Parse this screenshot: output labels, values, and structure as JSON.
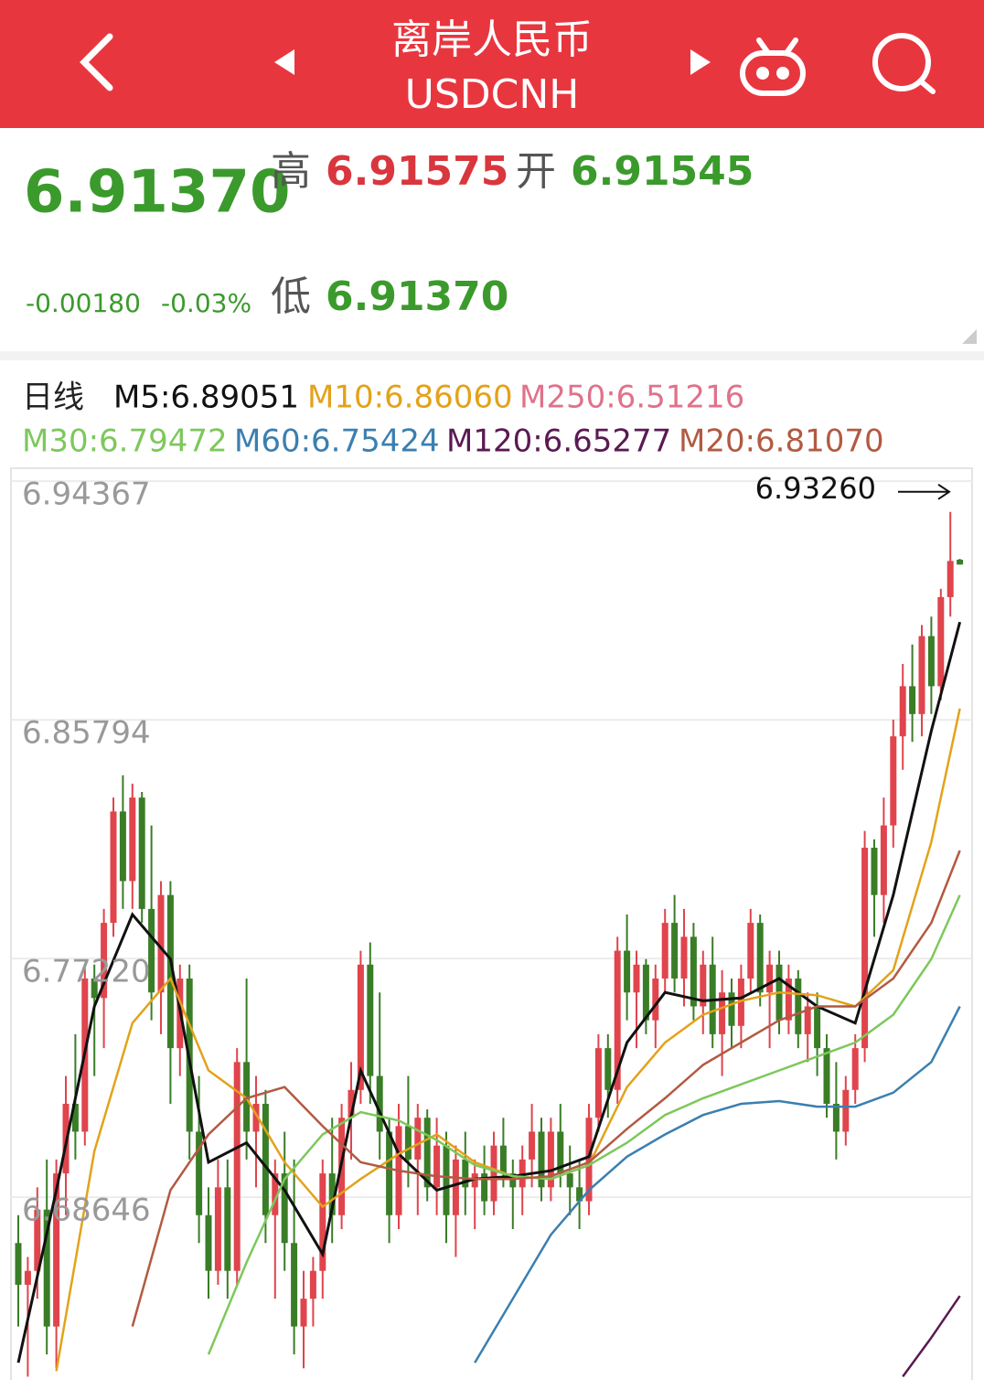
{
  "header": {
    "title": "离岸人民币",
    "symbol": "USDCNH"
  },
  "quote": {
    "price": "6.91370",
    "high_label": "高",
    "high": "6.91575",
    "open_label": "开",
    "open": "6.91545",
    "change": "-0.00180",
    "change_pct": "-0.03%",
    "low_label": "低",
    "low": "6.91370"
  },
  "chart_data": {
    "type": "candlestick",
    "period": "日线",
    "up_color": "#e0444c",
    "down_color": "#3a7d27",
    "ylim": [
      6.6208,
      6.9483
    ],
    "yticks": [
      6.94367,
      6.85794,
      {
        "value": 6.7722,
        "label": "6.77220"
      },
      6.68646
    ],
    "grid": true,
    "max_label": {
      "value": 6.9326,
      "label": "6.93260"
    },
    "ohlc": [
      [
        6.67,
        6.68,
        6.64,
        6.655
      ],
      [
        6.655,
        6.665,
        6.622,
        6.66
      ],
      [
        6.66,
        6.69,
        6.65,
        6.682
      ],
      [
        6.682,
        6.7,
        6.63,
        6.64
      ],
      [
        6.64,
        6.7,
        6.625,
        6.695
      ],
      [
        6.695,
        6.73,
        6.68,
        6.72
      ],
      [
        6.72,
        6.745,
        6.7,
        6.71
      ],
      [
        6.71,
        6.77,
        6.705,
        6.765
      ],
      [
        6.765,
        6.77,
        6.73,
        6.758
      ],
      [
        6.758,
        6.79,
        6.74,
        6.785
      ],
      [
        6.785,
        6.83,
        6.78,
        6.825
      ],
      [
        6.825,
        6.838,
        6.79,
        6.8
      ],
      [
        6.8,
        6.835,
        6.79,
        6.83
      ],
      [
        6.83,
        6.832,
        6.785,
        6.79
      ],
      [
        6.79,
        6.82,
        6.75,
        6.76
      ],
      [
        6.76,
        6.8,
        6.745,
        6.795
      ],
      [
        6.795,
        6.8,
        6.72,
        6.74
      ],
      [
        6.74,
        6.77,
        6.73,
        6.765
      ],
      [
        6.765,
        6.77,
        6.7,
        6.71
      ],
      [
        6.71,
        6.73,
        6.67,
        6.68
      ],
      [
        6.68,
        6.69,
        6.65,
        6.66
      ],
      [
        6.66,
        6.7,
        6.655,
        6.69
      ],
      [
        6.69,
        6.7,
        6.65,
        6.66
      ],
      [
        6.66,
        6.74,
        6.655,
        6.735
      ],
      [
        6.735,
        6.765,
        6.7,
        6.71
      ],
      [
        6.71,
        6.73,
        6.69,
        6.72
      ],
      [
        6.72,
        6.725,
        6.67,
        6.68
      ],
      [
        6.68,
        6.7,
        6.65,
        6.695
      ],
      [
        6.695,
        6.71,
        6.66,
        6.67
      ],
      [
        6.67,
        6.7,
        6.63,
        6.64
      ],
      [
        6.64,
        6.66,
        6.625,
        6.65
      ],
      [
        6.65,
        6.665,
        6.64,
        6.66
      ],
      [
        6.66,
        6.7,
        6.65,
        6.695
      ],
      [
        6.695,
        6.715,
        6.67,
        6.68
      ],
      [
        6.68,
        6.72,
        6.675,
        6.715
      ],
      [
        6.715,
        6.735,
        6.7,
        6.725
      ],
      [
        6.725,
        6.775,
        6.72,
        6.77
      ],
      [
        6.77,
        6.778,
        6.72,
        6.73
      ],
      [
        6.73,
        6.76,
        6.7,
        6.71
      ],
      [
        6.71,
        6.715,
        6.67,
        6.68
      ],
      [
        6.68,
        6.72,
        6.675,
        6.712
      ],
      [
        6.712,
        6.73,
        6.69,
        6.7
      ],
      [
        6.7,
        6.72,
        6.68,
        6.715
      ],
      [
        6.715,
        6.718,
        6.685,
        6.69
      ],
      [
        6.69,
        6.715,
        6.68,
        6.705
      ],
      [
        6.705,
        6.71,
        6.67,
        6.68
      ],
      [
        6.68,
        6.705,
        6.665,
        6.7
      ],
      [
        6.7,
        6.71,
        6.68,
        6.69
      ],
      [
        6.69,
        6.7,
        6.675,
        6.695
      ],
      [
        6.695,
        6.705,
        6.68,
        6.685
      ],
      [
        6.685,
        6.71,
        6.68,
        6.705
      ],
      [
        6.705,
        6.715,
        6.69,
        6.695
      ],
      [
        6.695,
        6.7,
        6.675,
        6.69
      ],
      [
        6.69,
        6.705,
        6.68,
        6.7
      ],
      [
        6.7,
        6.72,
        6.69,
        6.71
      ],
      [
        6.71,
        6.715,
        6.685,
        6.69
      ],
      [
        6.69,
        6.715,
        6.685,
        6.71
      ],
      [
        6.71,
        6.72,
        6.69,
        6.695
      ],
      [
        6.695,
        6.705,
        6.68,
        6.69
      ],
      [
        6.69,
        6.7,
        6.675,
        6.685
      ],
      [
        6.685,
        6.72,
        6.68,
        6.715
      ],
      [
        6.715,
        6.745,
        6.71,
        6.74
      ],
      [
        6.74,
        6.745,
        6.715,
        6.725
      ],
      [
        6.725,
        6.78,
        6.72,
        6.775
      ],
      [
        6.775,
        6.788,
        6.75,
        6.76
      ],
      [
        6.76,
        6.775,
        6.74,
        6.77
      ],
      [
        6.77,
        6.772,
        6.745,
        6.75
      ],
      [
        6.75,
        6.77,
        6.74,
        6.765
      ],
      [
        6.765,
        6.79,
        6.76,
        6.785
      ],
      [
        6.785,
        6.795,
        6.76,
        6.765
      ],
      [
        6.765,
        6.79,
        6.755,
        6.78
      ],
      [
        6.78,
        6.785,
        6.75,
        6.755
      ],
      [
        6.755,
        6.775,
        6.745,
        6.77
      ],
      [
        6.77,
        6.78,
        6.74,
        6.745
      ],
      [
        6.745,
        6.768,
        6.73,
        6.76
      ],
      [
        6.76,
        6.765,
        6.74,
        6.748
      ],
      [
        6.748,
        6.77,
        6.74,
        6.765
      ],
      [
        6.765,
        6.79,
        6.76,
        6.785
      ],
      [
        6.785,
        6.788,
        6.755,
        6.76
      ],
      [
        6.76,
        6.775,
        6.74,
        6.77
      ],
      [
        6.77,
        6.775,
        6.745,
        6.75
      ],
      [
        6.75,
        6.77,
        6.745,
        6.765
      ],
      [
        6.765,
        6.768,
        6.74,
        6.745
      ],
      [
        6.745,
        6.76,
        6.735,
        6.755
      ],
      [
        6.755,
        6.76,
        6.73,
        6.74
      ],
      [
        6.74,
        6.745,
        6.715,
        6.72
      ],
      [
        6.72,
        6.735,
        6.7,
        6.71
      ],
      [
        6.71,
        6.73,
        6.705,
        6.725
      ],
      [
        6.725,
        6.745,
        6.72,
        6.74
      ],
      [
        6.74,
        6.818,
        6.735,
        6.812
      ],
      [
        6.812,
        6.815,
        6.78,
        6.795
      ],
      [
        6.795,
        6.83,
        6.785,
        6.82
      ],
      [
        6.82,
        6.858,
        6.812,
        6.852
      ],
      [
        6.852,
        6.878,
        6.84,
        6.87
      ],
      [
        6.87,
        6.885,
        6.85,
        6.86
      ],
      [
        6.86,
        6.892,
        6.852,
        6.888
      ],
      [
        6.888,
        6.895,
        6.86,
        6.87
      ],
      [
        6.87,
        6.905,
        6.865,
        6.902
      ],
      [
        6.902,
        6.9326,
        6.895,
        6.915
      ],
      [
        6.91545,
        6.91575,
        6.9137,
        6.9137
      ]
    ],
    "series": [
      {
        "name": "M5:6.89051",
        "color": "#111111",
        "x": [
          0,
          4,
          8,
          12,
          16,
          20,
          24,
          28,
          32,
          36,
          40,
          44,
          48,
          52,
          56,
          60,
          64,
          68,
          72,
          76,
          80,
          84,
          88,
          92,
          96,
          99
        ],
        "values": [
          6.627,
          6.689,
          6.755,
          6.788,
          6.772,
          6.699,
          6.706,
          6.689,
          6.666,
          6.732,
          6.702,
          6.689,
          6.693,
          6.694,
          6.696,
          6.701,
          6.742,
          6.76,
          6.757,
          6.758,
          6.765,
          6.755,
          6.749,
          6.795,
          6.854,
          6.893
        ]
      },
      {
        "name": "M10:6.86060",
        "color": "#e3a21a",
        "x": [
          4,
          8,
          12,
          16,
          20,
          24,
          28,
          32,
          36,
          40,
          44,
          48,
          52,
          56,
          60,
          64,
          68,
          72,
          76,
          80,
          84,
          88,
          92,
          96,
          99
        ],
        "values": [
          6.624,
          6.703,
          6.749,
          6.765,
          6.732,
          6.722,
          6.699,
          6.683,
          6.693,
          6.702,
          6.709,
          6.699,
          6.694,
          6.693,
          6.698,
          6.726,
          6.742,
          6.752,
          6.757,
          6.76,
          6.759,
          6.755,
          6.768,
          6.814,
          6.862
        ]
      },
      {
        "name": "M250:6.51216",
        "color": "#e0728a",
        "x": [],
        "values": []
      },
      {
        "name": "M30:6.79472",
        "color": "#7dc85c",
        "x": [
          20,
          24,
          28,
          32,
          36,
          40,
          44,
          48,
          52,
          56,
          60,
          64,
          68,
          72,
          76,
          80,
          84,
          88,
          92,
          96,
          99
        ],
        "values": [
          6.63,
          6.663,
          6.693,
          6.709,
          6.717,
          6.714,
          6.707,
          6.698,
          6.694,
          6.693,
          6.698,
          6.706,
          6.716,
          6.722,
          6.727,
          6.732,
          6.737,
          6.742,
          6.752,
          6.772,
          6.795
        ]
      },
      {
        "name": "M60:6.75424",
        "color": "#3b7fb0",
        "x": [
          48,
          52,
          56,
          60,
          64,
          68,
          72,
          76,
          80,
          84,
          88,
          92,
          96,
          99
        ],
        "values": [
          6.627,
          6.65,
          6.673,
          6.689,
          6.701,
          6.709,
          6.716,
          6.72,
          6.721,
          6.719,
          6.719,
          6.724,
          6.735,
          6.755
        ]
      },
      {
        "name": "M120:6.65277",
        "color": "#5a1a52",
        "x": [
          93,
          96,
          99
        ],
        "values": [
          6.622,
          6.636,
          6.651
        ]
      },
      {
        "name": "M20:6.81070",
        "color": "#b25a42",
        "x": [
          12,
          16,
          20,
          24,
          28,
          32,
          36,
          40,
          44,
          48,
          52,
          56,
          60,
          64,
          68,
          72,
          76,
          80,
          84,
          88,
          92,
          96,
          99
        ],
        "values": [
          6.64,
          6.689,
          6.709,
          6.722,
          6.726,
          6.712,
          6.699,
          6.696,
          6.694,
          6.693,
          6.693,
          6.694,
          6.699,
          6.711,
          6.722,
          6.734,
          6.742,
          6.75,
          6.755,
          6.755,
          6.765,
          6.785,
          6.811
        ]
      }
    ]
  }
}
